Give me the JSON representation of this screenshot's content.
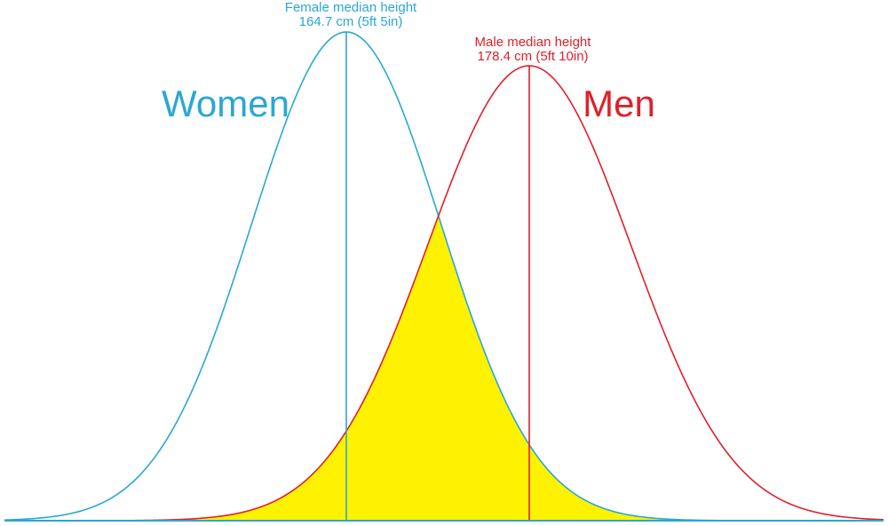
{
  "chart_data": {
    "type": "area",
    "title": "",
    "xlabel": "",
    "ylabel": "",
    "grid": false,
    "legend": "none",
    "overlap_fill_color": "#fff200",
    "series": [
      {
        "name": "Women",
        "color": "#2aa7d6",
        "median": 164.7,
        "std_dev": 7.1,
        "median_label_line1": "Female median height",
        "median_label_line2": "164.7 cm (5ft 5in)"
      },
      {
        "name": "Men",
        "color": "#e0202a",
        "median": 178.4,
        "std_dev": 7.6,
        "median_label_line1": "Male median height",
        "median_label_line2": "178.4 cm (5ft 10in)"
      }
    ]
  }
}
